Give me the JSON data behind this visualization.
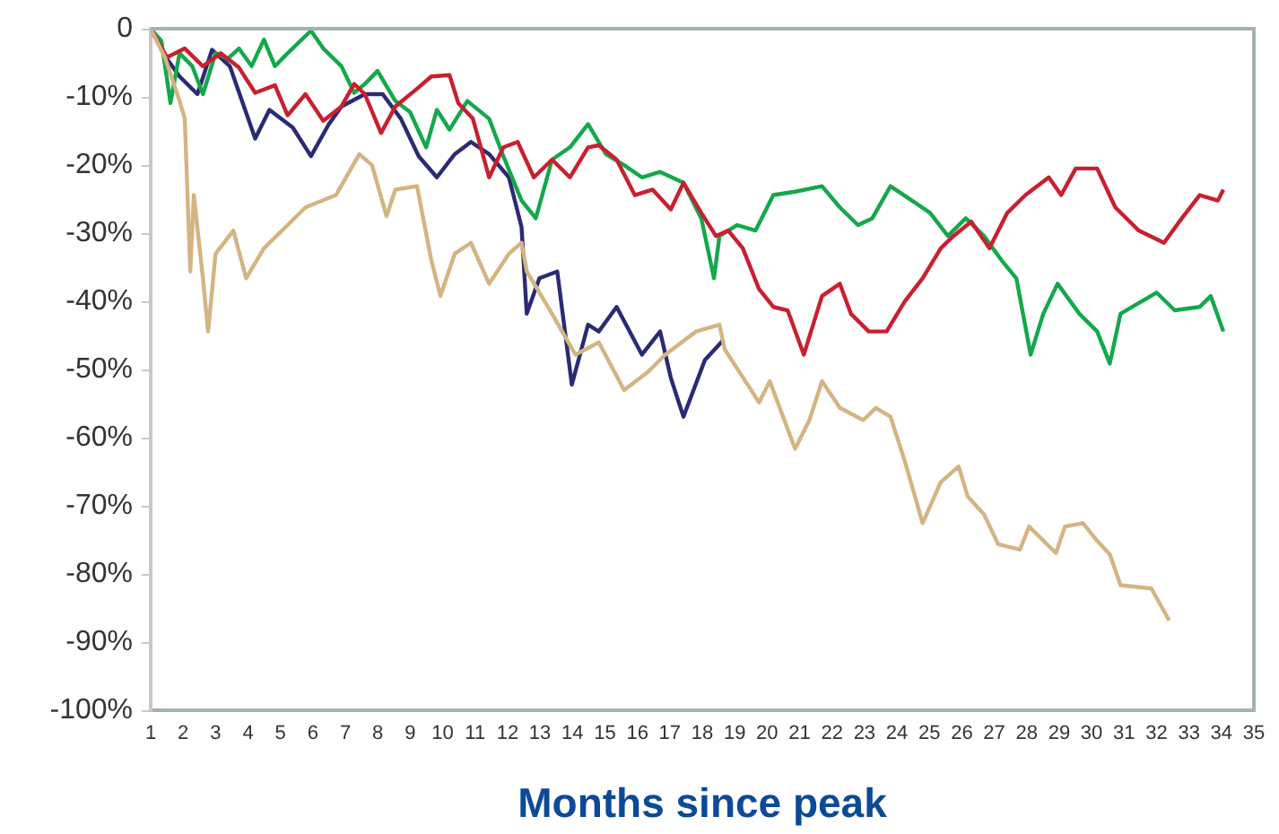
{
  "chart_data": {
    "type": "line",
    "xlabel": "Months since peak",
    "xlim": [
      1,
      35
    ],
    "xticks": [
      1,
      2,
      3,
      4,
      5,
      6,
      7,
      8,
      9,
      10,
      11,
      12,
      13,
      14,
      15,
      16,
      17,
      18,
      19,
      20,
      21,
      22,
      23,
      24,
      25,
      26,
      27,
      28,
      29,
      30,
      31,
      32,
      33,
      34,
      35
    ],
    "ylim": [
      -100,
      0
    ],
    "yticks": [
      0,
      {
        "value": -10,
        "label": "-10%"
      },
      {
        "value": -20,
        "label": "-20%"
      },
      {
        "value": -30,
        "label": "-30%"
      },
      {
        "value": -40,
        "label": "-40%"
      },
      {
        "value": -50,
        "label": "-50%"
      },
      {
        "value": -60,
        "label": "-60%"
      },
      {
        "value": -70,
        "label": "-70%"
      },
      {
        "value": -80,
        "label": "-80%"
      },
      {
        "value": -90,
        "label": "-90%"
      },
      {
        "value": -100,
        "label": "-100%"
      }
    ],
    "grid": false,
    "legend": false,
    "marker": "none",
    "line_style": "solid",
    "series": [
      {
        "color": "#d4b483",
        "x": [
          1,
          1.44,
          1.89,
          2.05,
          2.22,
          2.33,
          2.61,
          2.77,
          3.0,
          3.55,
          3.94,
          4.49,
          5.22,
          5.77,
          6.71,
          7.43,
          7.82,
          8.27,
          8.54,
          9.21,
          9.65,
          9.93,
          10.37,
          10.87,
          11.43,
          12.04,
          12.43,
          12.59,
          13.37,
          14.09,
          14.81,
          15.59,
          16.31,
          16.86,
          17.81,
          18.53,
          18.69,
          19.75,
          20.08,
          20.86,
          21.3,
          21.69,
          22.24,
          22.96,
          23.35,
          23.8,
          24.24,
          24.79,
          25.35,
          25.9,
          26.18,
          26.68,
          27.12,
          27.79,
          28.07,
          28.9,
          29.18,
          29.73,
          30.17,
          30.56,
          30.89,
          31.84,
          32.39
        ],
        "values": [
          0,
          -4.2,
          -10.6,
          -13.2,
          -35.6,
          -24.4,
          -36.6,
          -44.4,
          -33.0,
          -29.6,
          -36.6,
          -32.2,
          -28.8,
          -26.2,
          -24.4,
          -18.4,
          -20.0,
          -27.5,
          -23.6,
          -23.1,
          -34.0,
          -39.2,
          -33.0,
          -31.4,
          -37.4,
          -33.0,
          -31.4,
          -35.6,
          -41.8,
          -47.8,
          -46.0,
          -53.0,
          -50.4,
          -47.8,
          -44.4,
          -43.4,
          -47.0,
          -54.8,
          -51.7,
          -61.6,
          -57.4,
          -51.7,
          -55.6,
          -57.4,
          -55.6,
          -56.9,
          -63.4,
          -72.5,
          -66.5,
          -64.2,
          -68.6,
          -71.2,
          -75.6,
          -76.4,
          -73.0,
          -76.9,
          -73.0,
          -72.5,
          -75.1,
          -77.1,
          -81.6,
          -82.1,
          -86.8
        ]
      },
      {
        "color": "#c8202f",
        "x": [
          1,
          1.5,
          2.05,
          2.61,
          3.16,
          3.72,
          4.22,
          4.83,
          5.22,
          5.77,
          6.32,
          6.88,
          7.27,
          7.6,
          8.1,
          8.54,
          9.21,
          9.65,
          10.21,
          10.48,
          10.93,
          11.43,
          11.87,
          12.31,
          12.81,
          13.37,
          13.92,
          14.48,
          14.81,
          15.36,
          15.92,
          16.47,
          17.03,
          17.42,
          17.97,
          18.42,
          18.8,
          19.25,
          19.75,
          20.19,
          20.63,
          21.13,
          21.69,
          22.24,
          22.58,
          23.13,
          23.68,
          24.24,
          24.79,
          25.35,
          25.74,
          26.29,
          26.85,
          27.4,
          27.96,
          28.68,
          29.06,
          29.51,
          30.17,
          30.73,
          31.45,
          32.23,
          32.78,
          33.33,
          33.89,
          34.06
        ],
        "values": [
          0,
          -4.2,
          -2.9,
          -5.5,
          -3.6,
          -5.7,
          -9.4,
          -8.3,
          -12.7,
          -9.6,
          -13.5,
          -11.4,
          -8.1,
          -9.6,
          -15.3,
          -11.4,
          -8.8,
          -7.0,
          -6.8,
          -10.9,
          -13.2,
          -21.8,
          -17.4,
          -16.6,
          -21.8,
          -19.2,
          -21.8,
          -17.4,
          -17.1,
          -19.2,
          -24.4,
          -23.6,
          -26.5,
          -22.6,
          -27.0,
          -30.4,
          -29.6,
          -32.2,
          -38.2,
          -40.8,
          -41.3,
          -47.8,
          -39.2,
          -37.4,
          -41.8,
          -44.4,
          -44.4,
          -40.0,
          -36.6,
          -32.2,
          -30.4,
          -28.3,
          -32.2,
          -27.0,
          -24.4,
          -21.8,
          -24.4,
          -20.5,
          -20.5,
          -26.2,
          -29.6,
          -31.4,
          -27.8,
          -24.4,
          -25.2,
          -23.6
        ]
      },
      {
        "color": "#14a84a",
        "x": [
          1,
          1.33,
          1.61,
          1.89,
          2.28,
          2.61,
          3.0,
          3.38,
          3.72,
          4.11,
          4.49,
          4.83,
          5.22,
          5.94,
          6.32,
          6.88,
          7.27,
          7.6,
          7.99,
          8.54,
          8.99,
          9.49,
          9.82,
          10.21,
          10.76,
          11.43,
          11.87,
          12.43,
          12.87,
          13.37,
          13.92,
          14.48,
          15.03,
          15.59,
          16.14,
          16.7,
          17.42,
          17.97,
          18.36,
          18.53,
          19.08,
          19.64,
          20.19,
          20.86,
          21.69,
          22.24,
          22.8,
          23.24,
          23.8,
          24.46,
          25.02,
          25.57,
          26.12,
          26.68,
          27.23,
          27.68,
          28.12,
          28.51,
          28.95,
          29.62,
          30.17,
          30.56,
          30.89,
          32.0,
          32.56,
          33.33,
          33.67,
          34.06
        ],
        "values": [
          0,
          -1.8,
          -10.9,
          -3.6,
          -5.5,
          -9.6,
          -3.6,
          -4.4,
          -2.9,
          -5.5,
          -1.6,
          -5.5,
          -3.6,
          -0.3,
          -2.9,
          -5.5,
          -9.4,
          -8.1,
          -6.2,
          -10.6,
          -12.2,
          -17.4,
          -11.9,
          -14.8,
          -10.6,
          -13.2,
          -18.7,
          -25.2,
          -27.8,
          -19.2,
          -17.4,
          -14.0,
          -18.4,
          -20.0,
          -21.8,
          -21.0,
          -22.6,
          -27.8,
          -36.6,
          -30.4,
          -28.8,
          -29.6,
          -24.4,
          -23.9,
          -23.1,
          -26.2,
          -28.8,
          -27.8,
          -23.1,
          -25.2,
          -27.0,
          -30.4,
          -27.8,
          -30.4,
          -34.0,
          -36.6,
          -47.8,
          -41.8,
          -37.4,
          -41.8,
          -44.4,
          -49.1,
          -41.8,
          -38.7,
          -41.3,
          -40.8,
          -39.2,
          -44.4
        ]
      },
      {
        "color": "#2b2a75",
        "x": [
          1,
          1.5,
          1.89,
          2.44,
          2.89,
          3.44,
          4.22,
          4.66,
          5.38,
          5.94,
          6.49,
          6.88,
          7.6,
          8.15,
          8.71,
          9.26,
          9.82,
          10.37,
          10.87,
          11.43,
          12.04,
          12.43,
          12.59,
          12.98,
          13.53,
          13.98,
          14.48,
          14.81,
          15.36,
          16.14,
          16.7,
          17.03,
          17.42,
          18.08,
          18.64
        ],
        "values": [
          0,
          -4.4,
          -7.0,
          -9.6,
          -3.1,
          -5.5,
          -16.1,
          -11.9,
          -14.5,
          -18.7,
          -14.0,
          -11.4,
          -9.6,
          -9.6,
          -13.2,
          -18.7,
          -21.8,
          -18.4,
          -16.6,
          -18.4,
          -21.8,
          -29.1,
          -41.8,
          -36.6,
          -35.6,
          -52.2,
          -43.4,
          -44.4,
          -40.8,
          -47.8,
          -44.4,
          -51.2,
          -56.9,
          -48.6,
          -45.7
        ]
      }
    ]
  }
}
